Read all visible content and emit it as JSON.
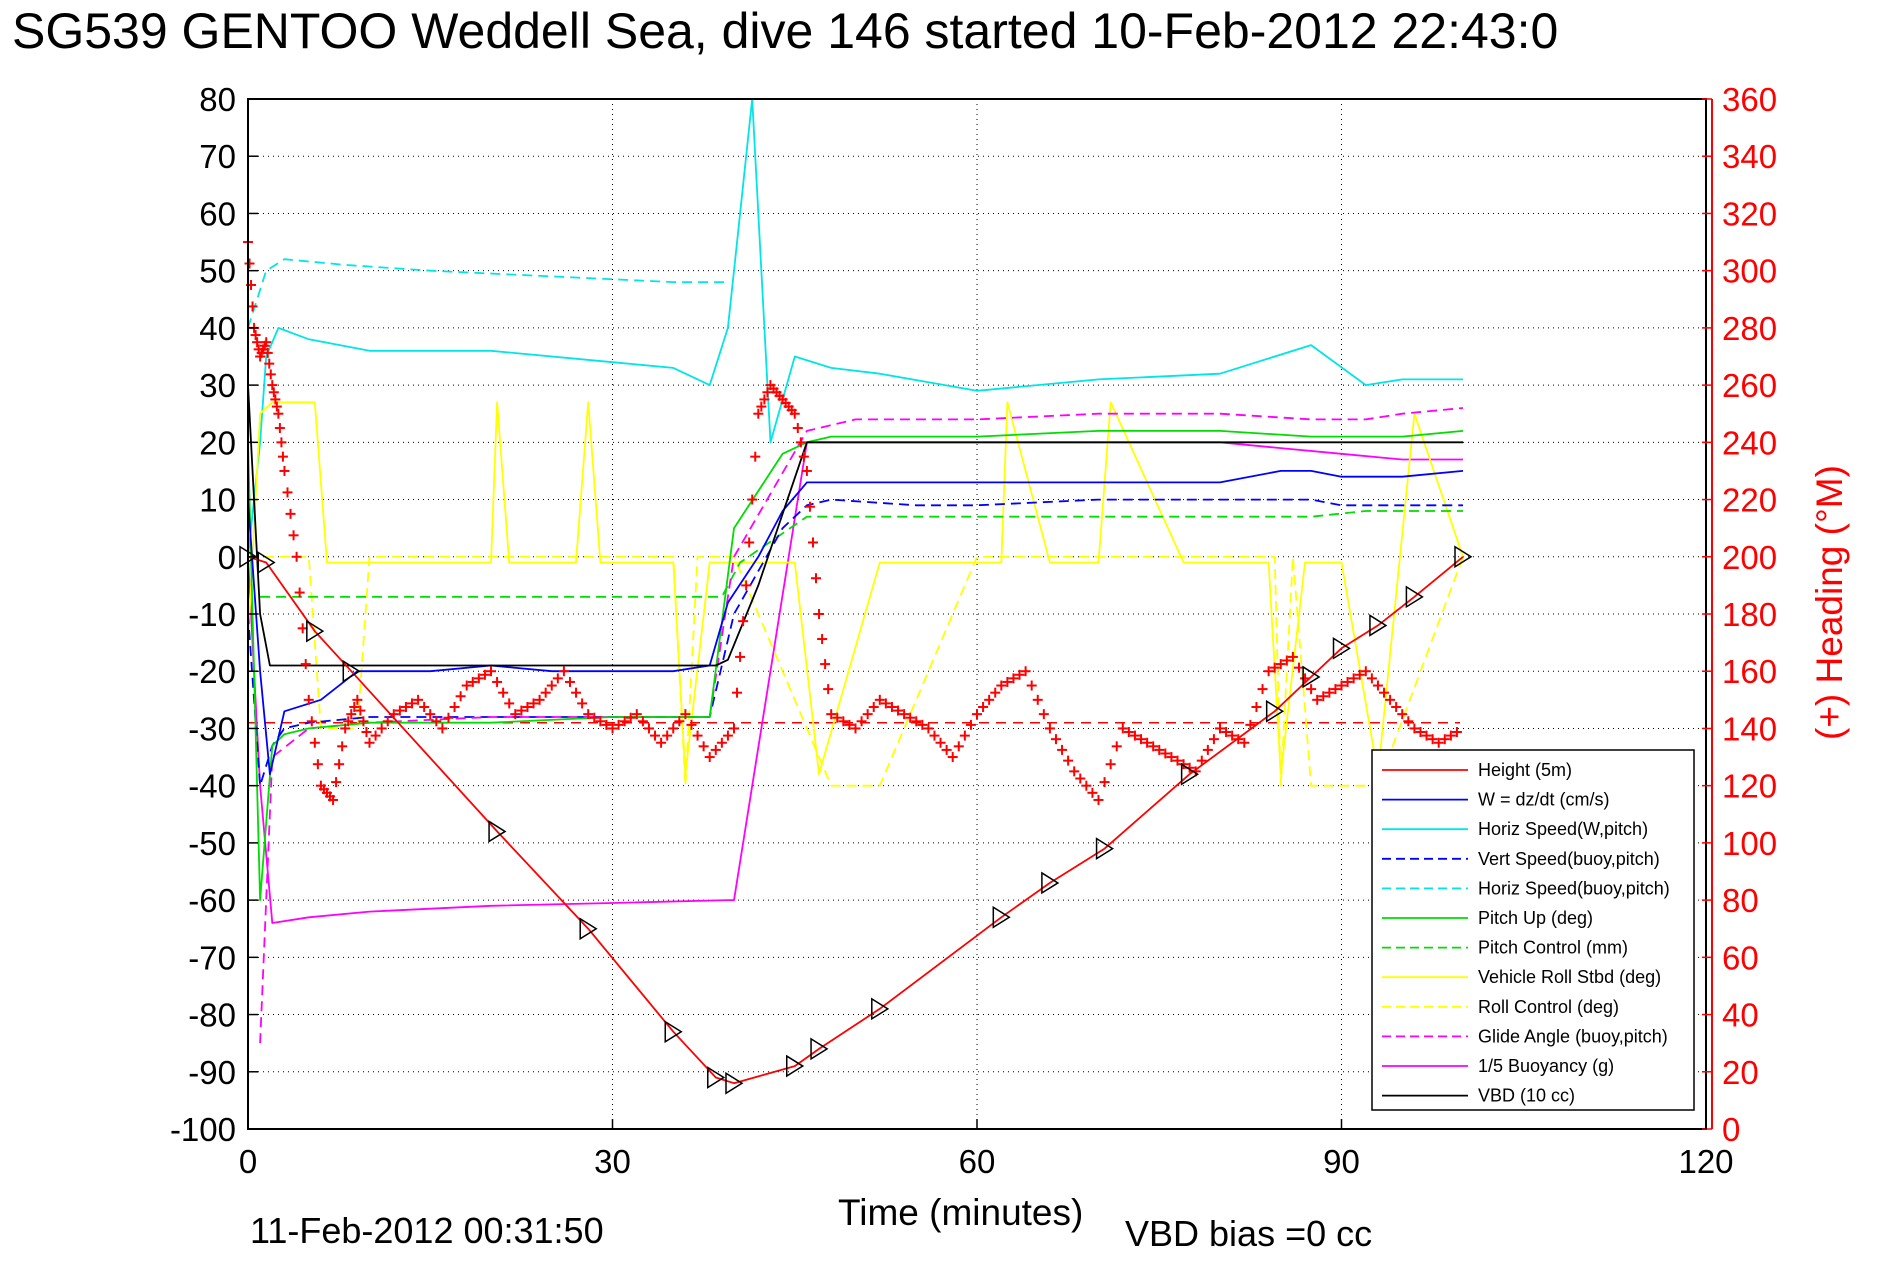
{
  "colors": {
    "height": "#ff0000",
    "w": "#0000ff",
    "horiz_speed": "#00e5e5",
    "pitch": "#00dd00",
    "roll": "#ffff00",
    "glide": "#ff00ff",
    "buoyancy": "#ff00ff",
    "vbd": "#000000",
    "heading": "#ff0000",
    "grid": "#000000"
  },
  "footer": {
    "timestamp": "11-Feb-2012 00:31:50",
    "vbd_bias": "VBD bias =0 cc"
  },
  "chart_data": {
    "type": "line",
    "title": "SG539 GENTOO Weddell Sea, dive 146 started 10-Feb-2012 22:43:0",
    "xlabel": "Time (minutes)",
    "ylabel_right": "(+) Heading (°M)",
    "xlim": [
      0,
      120
    ],
    "ylim": [
      -100,
      80
    ],
    "ylim_right": [
      0,
      360
    ],
    "xticks": [
      "0",
      "30",
      "60",
      "90",
      "120"
    ],
    "yticks": [
      "80",
      "70",
      "60",
      "50",
      "40",
      "30",
      "20",
      "10",
      "0",
      "-10",
      "-20",
      "-30",
      "-40",
      "-50",
      "-60",
      "-70",
      "-80",
      "-90",
      "-100"
    ],
    "yticks_right": [
      "360",
      "340",
      "320",
      "300",
      "280",
      "260",
      "240",
      "220",
      "200",
      "180",
      "160",
      "140",
      "120",
      "100",
      "80",
      "60",
      "40",
      "20",
      "0"
    ],
    "grid": true,
    "legend_position": "bottom-right",
    "legend": [
      {
        "label": "Height (5m)",
        "color": "#ff0000",
        "style": "solid"
      },
      {
        "label": "W = dz/dt (cm/s)",
        "color": "#0000ff",
        "style": "solid"
      },
      {
        "label": "Horiz Speed(W,pitch)",
        "color": "#00e5e5",
        "style": "solid"
      },
      {
        "label": "Vert Speed(buoy,pitch)",
        "color": "#0000ff",
        "style": "dashed"
      },
      {
        "label": "Horiz Speed(buoy,pitch)",
        "color": "#00e5e5",
        "style": "dashed"
      },
      {
        "label": "Pitch Up (deg)",
        "color": "#00dd00",
        "style": "solid"
      },
      {
        "label": "Pitch Control (mm)",
        "color": "#00dd00",
        "style": "dashed"
      },
      {
        "label": "Vehicle Roll Stbd (deg)",
        "color": "#ffff00",
        "style": "solid"
      },
      {
        "label": "Roll Control (deg)",
        "color": "#ffff00",
        "style": "dashed"
      },
      {
        "label": "Glide Angle (buoy,pitch)",
        "color": "#ff00ff",
        "style": "dashed"
      },
      {
        "label": "1/5 Buoyancy (g)",
        "color": "#ff00ff",
        "style": "solid"
      },
      {
        "label": "VBD (10 cc)",
        "color": "#000000",
        "style": "solid"
      }
    ],
    "series": [
      {
        "name": "Height (5m)",
        "color": "#ff0000",
        "style": "solid",
        "x": [
          0,
          1.5,
          5.5,
          8.5,
          20.5,
          28,
          35,
          38.5,
          40,
          45,
          47,
          52,
          62,
          66,
          70.5,
          77.5,
          84.5,
          87.5,
          90,
          93,
          96,
          100
        ],
        "y": [
          0,
          -1,
          -13,
          -20,
          -48,
          -65,
          -83,
          -91,
          -92,
          -89,
          -86,
          -79,
          -63,
          -57,
          -51,
          -38,
          -27,
          -21,
          -16,
          -12,
          -7,
          0
        ]
      },
      {
        "name": "W = dz/dt (cm/s)",
        "color": "#0000ff",
        "style": "solid",
        "x": [
          0,
          1,
          1.8,
          3,
          6,
          9,
          15,
          20,
          25,
          30,
          35,
          38,
          39.5,
          42,
          44,
          46,
          48,
          52,
          55,
          60,
          65,
          70,
          75,
          80,
          85,
          87.5,
          90,
          95,
          100
        ],
        "y": [
          10,
          -20,
          -38,
          -27,
          -25,
          -20,
          -20,
          -19,
          -20,
          -20,
          -20,
          -19,
          -8,
          0,
          8,
          13,
          13,
          13,
          13,
          13,
          13,
          13,
          13,
          13,
          15,
          15,
          14,
          14,
          15
        ]
      },
      {
        "name": "Horiz Speed(W,pitch)",
        "color": "#00e5e5",
        "style": "solid",
        "x": [
          0,
          1,
          1.5,
          2.5,
          5,
          10,
          20,
          30,
          35,
          38,
          39.5,
          40.5,
          41.5,
          43,
          45,
          48,
          52,
          60,
          70,
          80,
          87.5,
          92,
          95,
          100
        ],
        "y": [
          0,
          20,
          35,
          40,
          38,
          36,
          36,
          34,
          33,
          30,
          40,
          60,
          80,
          20,
          35,
          33,
          32,
          29,
          31,
          32,
          37,
          30,
          31,
          31
        ]
      },
      {
        "name": "Vert Speed(buoy,pitch)",
        "color": "#0000ff",
        "style": "dashed",
        "x": [
          0,
          1,
          2,
          3,
          5,
          10,
          20,
          30,
          38,
          40,
          44,
          46,
          48,
          55,
          60,
          70,
          80,
          85,
          87.5,
          90,
          95,
          100
        ],
        "y": [
          -10,
          -40,
          -33,
          -30,
          -29,
          -28,
          -28,
          -28,
          -28,
          -10,
          5,
          9,
          10,
          9,
          9,
          10,
          10,
          10,
          10,
          9,
          9,
          9
        ]
      },
      {
        "name": "Horiz Speed(buoy,pitch)",
        "color": "#00e5e5",
        "style": "dashed",
        "x": [
          0,
          1.5,
          3,
          8,
          15,
          25,
          35,
          39.5
        ],
        "y": [
          40,
          50,
          52,
          51,
          50,
          49,
          48,
          48
        ]
      },
      {
        "name": "Pitch Up (deg)",
        "color": "#00dd00",
        "style": "solid",
        "x": [
          0,
          1,
          2,
          3,
          5,
          10,
          20,
          30,
          35,
          38,
          40,
          44,
          46,
          48,
          55,
          60,
          70,
          80,
          87.5,
          90,
          95,
          100
        ],
        "y": [
          20,
          -60,
          -33,
          -31,
          -30,
          -29,
          -29,
          -28,
          -28,
          -28,
          5,
          18,
          20,
          21,
          21,
          21,
          22,
          22,
          21,
          21,
          21,
          22
        ]
      },
      {
        "name": "Pitch Control (mm)",
        "color": "#00dd00",
        "style": "dashed",
        "x": [
          1,
          5,
          20,
          30,
          39,
          40.5,
          46,
          55,
          70,
          85,
          87.5,
          92,
          100
        ],
        "y": [
          -7,
          -7,
          -7,
          -7,
          -7,
          -1,
          7,
          7,
          7,
          7,
          7,
          8,
          8
        ]
      },
      {
        "name": "Vehicle Roll Stbd (deg)",
        "color": "#ffff00",
        "style": "solid",
        "x": [
          0,
          1,
          2,
          4,
          5.5,
          6.5,
          8,
          10,
          20,
          20.5,
          21.5,
          27,
          28,
          29,
          35,
          36,
          38,
          40,
          45,
          47,
          52,
          60,
          62,
          62.5,
          66,
          70,
          71,
          77,
          84,
          85,
          87,
          90,
          93,
          96,
          100
        ],
        "y": [
          -15,
          25,
          27,
          27,
          27,
          -1,
          -1,
          -1,
          -1,
          27,
          -1,
          -1,
          27,
          -1,
          -1,
          -38,
          -1,
          -1,
          -1,
          -38,
          -1,
          -1,
          -1,
          27,
          -1,
          -1,
          27,
          -1,
          -1,
          -38,
          -1,
          -1,
          -38,
          25,
          0
        ]
      },
      {
        "name": "Roll Control (deg)",
        "color": "#ffff00",
        "style": "dashed",
        "x": [
          0,
          5,
          6,
          9,
          10,
          30,
          35,
          36,
          37,
          40,
          46,
          48,
          52,
          60,
          70,
          80,
          84.5,
          85,
          86,
          87.5,
          93,
          100
        ],
        "y": [
          0,
          0,
          -30,
          -30,
          0,
          0,
          0,
          -40,
          0,
          0,
          -30,
          -40,
          -40,
          0,
          0,
          0,
          0,
          -40,
          0,
          -40,
          -40,
          0
        ]
      },
      {
        "name": "Glide Angle (buoy,pitch)",
        "color": "#ff00ff",
        "style": "dashed",
        "x": [
          1,
          2,
          5,
          10,
          20,
          30,
          38,
          40,
          46,
          50,
          60,
          70,
          80,
          87.5,
          92,
          95,
          100
        ],
        "y": [
          -85,
          -35,
          -30,
          -29,
          -28,
          -28,
          -28,
          0,
          22,
          24,
          24,
          25,
          25,
          24,
          24,
          25,
          26
        ]
      },
      {
        "name": "1/5 Buoyancy (g)",
        "color": "#ff00ff",
        "style": "solid",
        "x": [
          0,
          1,
          2,
          5,
          10,
          20,
          30,
          39.5,
          40,
          46,
          50,
          60,
          70,
          80,
          85,
          90,
          95,
          100
        ],
        "y": [
          0,
          -40,
          -64,
          -63,
          -62,
          -61,
          -60.5,
          -60,
          -60,
          20,
          20,
          20,
          20,
          20,
          19,
          18,
          17,
          17
        ]
      },
      {
        "name": "VBD (10 cc)",
        "color": "#000000",
        "style": "solid",
        "x": [
          0,
          1,
          1.8,
          5,
          10,
          20,
          30,
          38.5,
          39.5,
          42,
          46,
          60,
          70,
          80,
          90,
          100
        ],
        "y": [
          30,
          -10,
          -19,
          -19,
          -19,
          -19,
          -19,
          -19,
          -18,
          -5,
          20,
          20,
          20,
          20,
          20,
          20
        ]
      }
    ],
    "heading": {
      "name": "(+) Heading",
      "color": "#ff0000",
      "x": [
        0,
        0.5,
        1,
        1.5,
        2,
        2.5,
        3,
        4,
        5,
        6,
        7,
        8,
        9,
        10,
        12,
        14,
        16,
        18,
        20,
        22,
        24,
        26,
        28,
        30,
        32,
        34,
        36,
        38,
        40,
        41,
        42,
        43,
        44,
        45,
        46,
        47,
        48,
        50,
        52,
        54,
        56,
        58,
        60,
        62,
        64,
        66,
        68,
        70,
        72,
        74,
        76,
        78,
        80,
        82,
        84,
        86,
        88,
        90,
        92,
        94,
        96,
        98,
        100
      ],
      "y": [
        310,
        280,
        270,
        275,
        260,
        250,
        230,
        200,
        150,
        120,
        115,
        140,
        150,
        135,
        145,
        150,
        140,
        155,
        160,
        145,
        150,
        160,
        145,
        140,
        145,
        135,
        145,
        130,
        140,
        190,
        250,
        260,
        255,
        250,
        230,
        180,
        145,
        140,
        150,
        145,
        140,
        130,
        145,
        155,
        160,
        140,
        125,
        115,
        140,
        135,
        130,
        125,
        140,
        135,
        160,
        165,
        150,
        155,
        160,
        150,
        140,
        135,
        140
      ]
    },
    "reference_line_heading": 142
  }
}
